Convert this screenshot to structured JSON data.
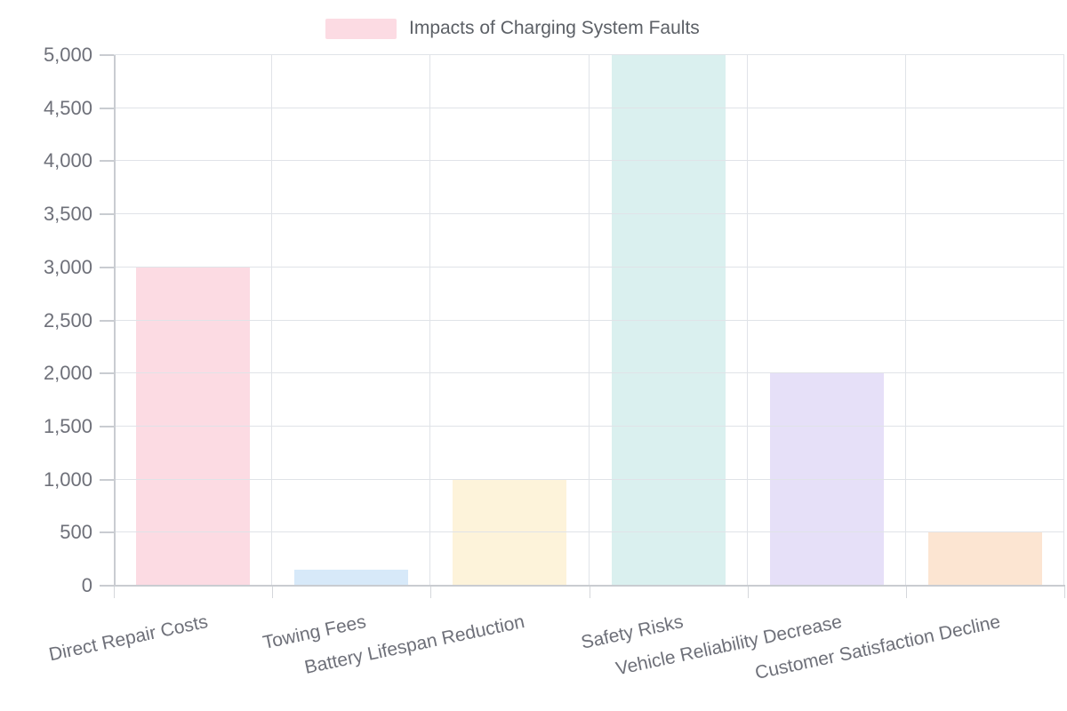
{
  "legend": {
    "label": "Impacts of Charging System Faults",
    "swatch_color": "#fcdbe3"
  },
  "chart_data": {
    "type": "bar",
    "title": "Impacts of Charging System Faults",
    "categories": [
      "Direct Repair Costs",
      "Towing Fees",
      "Battery Lifespan Reduction",
      "Safety Risks",
      "Vehicle Reliability Decrease",
      "Customer Satisfaction Decline"
    ],
    "values": [
      3000,
      150,
      1000,
      5000,
      2000,
      500
    ],
    "bar_colors": [
      "#fcdbe3",
      "#d7e9f9",
      "#fdf3da",
      "#daf0ef",
      "#e6e0f8",
      "#fce5d2"
    ],
    "xlabel": "",
    "ylabel": "",
    "ylim": [
      0,
      5000
    ],
    "ytick_step": 500,
    "ytick_labels": [
      "0",
      "500",
      "1,000",
      "1,500",
      "2,000",
      "2,500",
      "3,000",
      "3,500",
      "4,000",
      "4,500",
      "5,000"
    ],
    "grid": true,
    "legend_position": "top-center",
    "x_label_rotation_deg": -12
  },
  "colors": {
    "axis_line": "#c9ccd1",
    "grid_line": "#e0e3e8",
    "tick_text": "#6e7079",
    "legend_text": "#5c6066",
    "background": "#ffffff"
  }
}
